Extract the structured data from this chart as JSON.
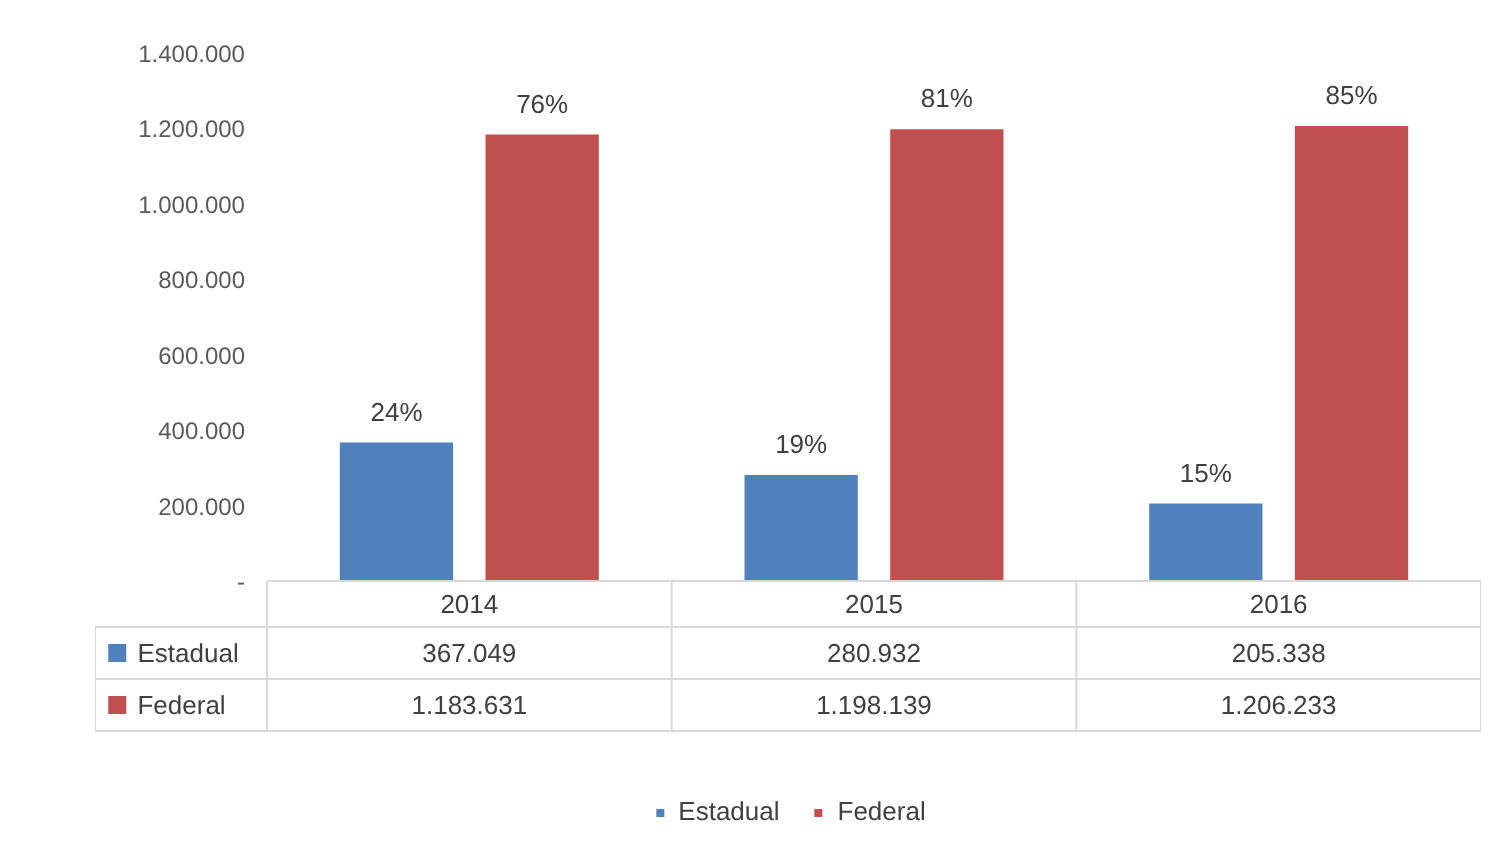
{
  "chart_data": {
    "type": "bar",
    "categories": [
      "2014",
      "2015",
      "2016"
    ],
    "series": [
      {
        "name": "Estadual",
        "color": "#4f81bd",
        "values": [
          367049,
          280932,
          205338
        ],
        "value_labels": [
          "367.049",
          "280.932",
          "205.338"
        ]
      },
      {
        "name": "Federal",
        "color": "#c0504d",
        "values": [
          1183631,
          1198139,
          1206233
        ],
        "value_labels": [
          "1.183.631",
          "1.198.139",
          "1.206.233"
        ]
      }
    ],
    "annotations": [
      "24%",
      "76%",
      "19%",
      "81%",
      "15%",
      "85%"
    ],
    "ylim": [
      0,
      1400000
    ],
    "yticks": [
      {
        "value": 0,
        "label": "-"
      },
      {
        "value": 200000,
        "label": "200.000"
      },
      {
        "value": 400000,
        "label": "400.000"
      },
      {
        "value": 600000,
        "label": "600.000"
      },
      {
        "value": 800000,
        "label": "800.000"
      },
      {
        "value": 1000000,
        "label": "1.000.000"
      },
      {
        "value": 1200000,
        "label": "1.200.000"
      },
      {
        "value": 1400000,
        "label": "1.400.000"
      }
    ],
    "tick_labels": "y",
    "grid": false,
    "legend": "bottom"
  }
}
